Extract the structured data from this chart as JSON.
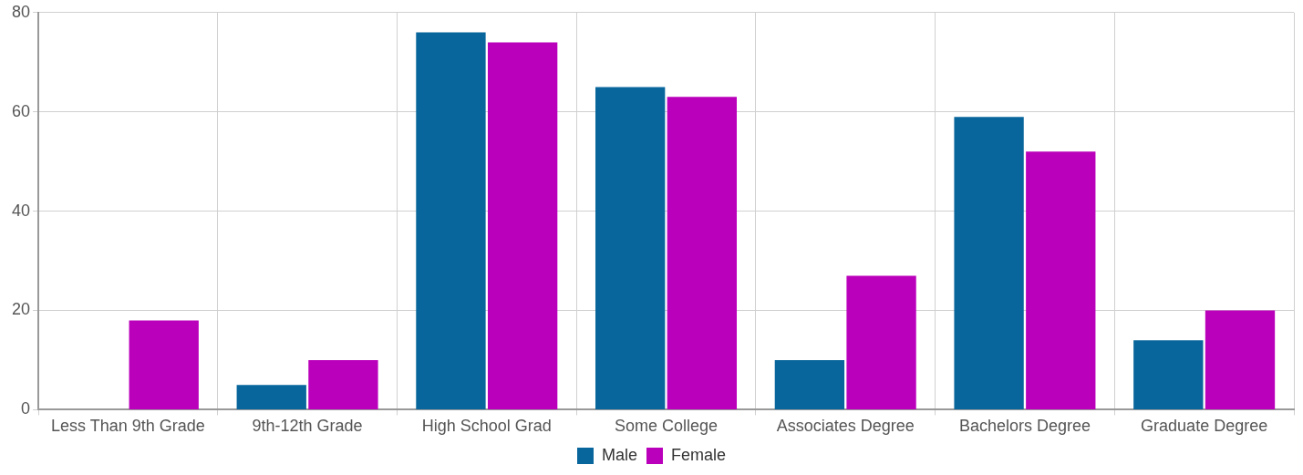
{
  "chart_data": {
    "type": "bar",
    "categories": [
      "Less Than 9th Grade",
      "9th-12th Grade",
      "High School Grad",
      "Some College",
      "Associates Degree",
      "Bachelors Degree",
      "Graduate Degree"
    ],
    "series": [
      {
        "name": "Male",
        "color": "#08669c",
        "values": [
          0,
          5,
          76,
          65,
          10,
          59,
          14
        ]
      },
      {
        "name": "Female",
        "color": "#bb00bb",
        "values": [
          18,
          10,
          74,
          63,
          27,
          52,
          20
        ]
      }
    ],
    "ylim": [
      0,
      80
    ],
    "yticks": [
      0,
      20,
      40,
      60,
      80
    ],
    "grid": true,
    "legend": "bottom"
  }
}
